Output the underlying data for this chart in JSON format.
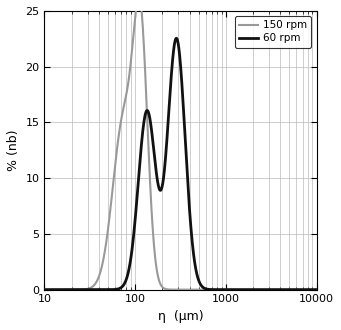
{
  "xlabel": "η  (μm)",
  "ylabel": "% (nb)",
  "xlim": [
    10,
    10000
  ],
  "ylim": [
    0,
    25
  ],
  "yticks": [
    0,
    5,
    10,
    15,
    20,
    25
  ],
  "legend_150": "150 rpm",
  "legend_60": "60 rpm",
  "color_150": "#999999",
  "color_60": "#111111",
  "lw_150": 1.5,
  "lw_60": 2.0,
  "background": "#ffffff",
  "grid_color": "#bbbbbb",
  "curve150_peaks": [
    {
      "mu": 75,
      "sigma": 0.28,
      "amp": 15.2
    },
    {
      "mu": 115,
      "sigma": 0.18,
      "amp": 21.0
    }
  ],
  "curve60_peaks": [
    {
      "mu": 135,
      "sigma": 0.22,
      "amp": 16.0
    },
    {
      "mu": 285,
      "sigma": 0.22,
      "amp": 22.5
    }
  ]
}
